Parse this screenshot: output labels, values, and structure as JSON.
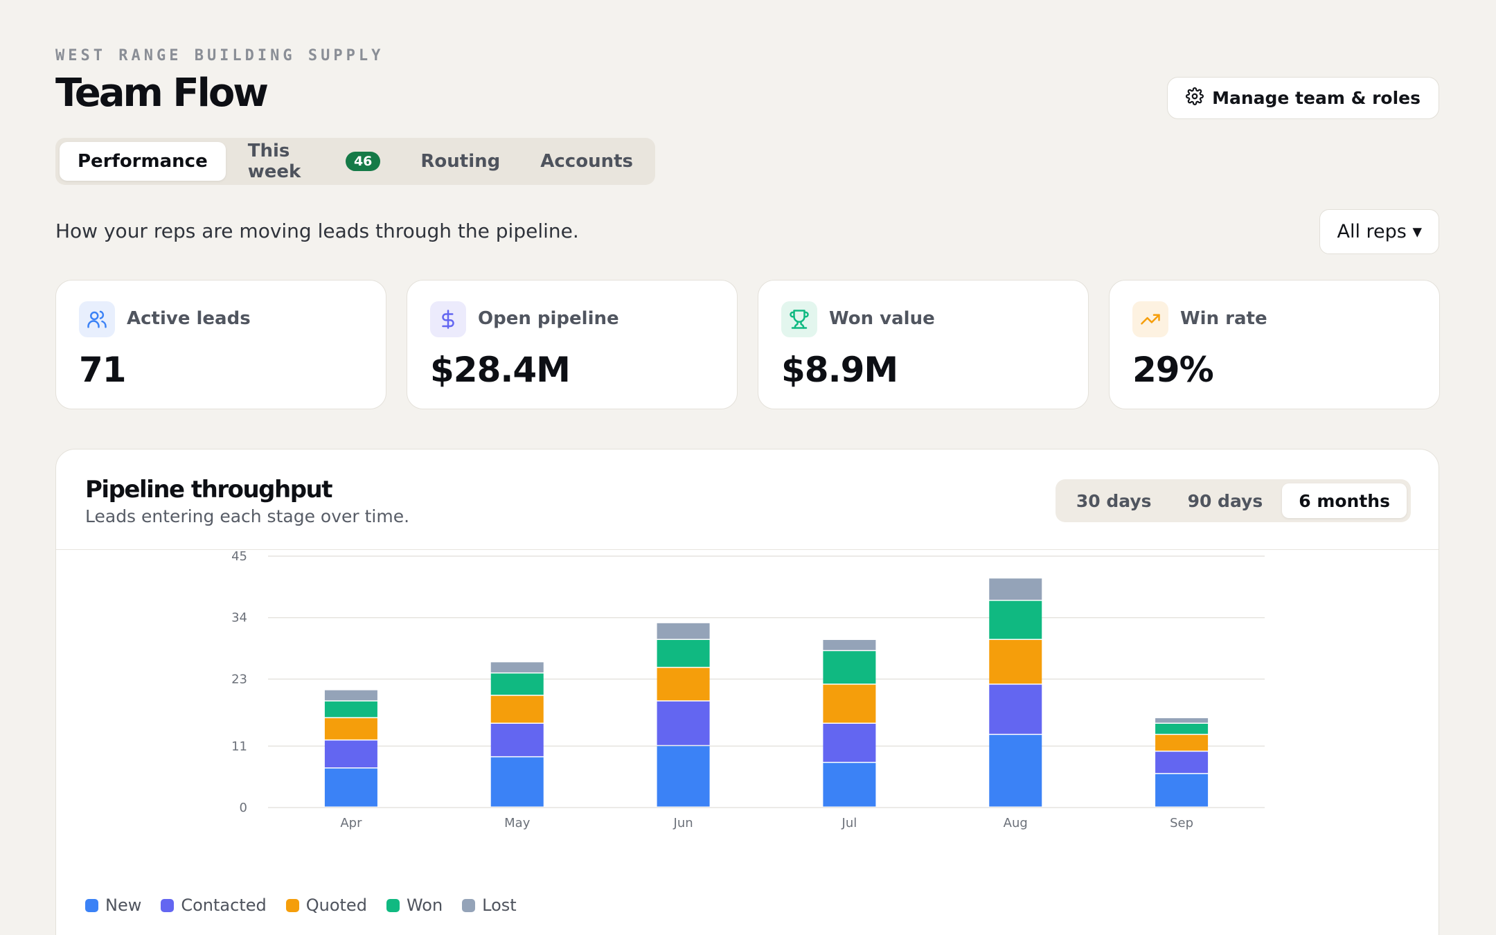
{
  "header": {
    "company": "WEST RANGE BUILDING SUPPLY",
    "title": "Team Flow",
    "manage_label": "Manage team & roles",
    "manage_icon": "gear-icon"
  },
  "tabs": [
    {
      "label": "Performance",
      "active": true
    },
    {
      "label": "This week",
      "badge": "46"
    },
    {
      "label": "Routing"
    },
    {
      "label": "Accounts"
    }
  ],
  "subtitle": "How your reps are moving leads through the pipeline.",
  "rep_filter": {
    "selected": "All reps ▾"
  },
  "kpis": [
    {
      "label": "Active leads",
      "value": "71",
      "icon": "users-icon",
      "color": "#3b82f6"
    },
    {
      "label": "Open pipeline",
      "value": "$28.4M",
      "icon": "dollar-icon",
      "color": "#6366f1"
    },
    {
      "label": "Won value",
      "value": "$8.9M",
      "icon": "trophy-icon",
      "color": "#10b981"
    },
    {
      "label": "Win rate",
      "value": "29%",
      "icon": "trending-up-icon",
      "color": "#f59e0b"
    }
  ],
  "chart_card": {
    "title": "Pipeline throughput",
    "subtitle": "Leads entering each stage over time.",
    "ranges": [
      {
        "label": "30 days"
      },
      {
        "label": "90 days"
      },
      {
        "label": "6 months",
        "active": true
      }
    ]
  },
  "chart_data": {
    "type": "bar",
    "stacked": true,
    "categories": [
      "Apr",
      "May",
      "Jun",
      "Jul",
      "Aug",
      "Sep"
    ],
    "series": [
      {
        "name": "New",
        "color": "#3b82f6",
        "values": [
          7,
          9,
          11,
          8,
          13,
          6
        ]
      },
      {
        "name": "Contacted",
        "color": "#6366f1",
        "values": [
          5,
          6,
          8,
          7,
          9,
          4
        ]
      },
      {
        "name": "Quoted",
        "color": "#f59e0b",
        "values": [
          4,
          5,
          6,
          7,
          8,
          3
        ]
      },
      {
        "name": "Won",
        "color": "#10b981",
        "values": [
          3,
          4,
          5,
          6,
          7,
          2
        ]
      },
      {
        "name": "Lost",
        "color": "#94a3b8",
        "values": [
          2,
          2,
          3,
          2,
          4,
          1
        ]
      }
    ],
    "yticks": [
      0,
      11,
      23,
      34,
      45
    ],
    "ylim": [
      0,
      45
    ],
    "grid": true,
    "legend": "bottom-left"
  }
}
